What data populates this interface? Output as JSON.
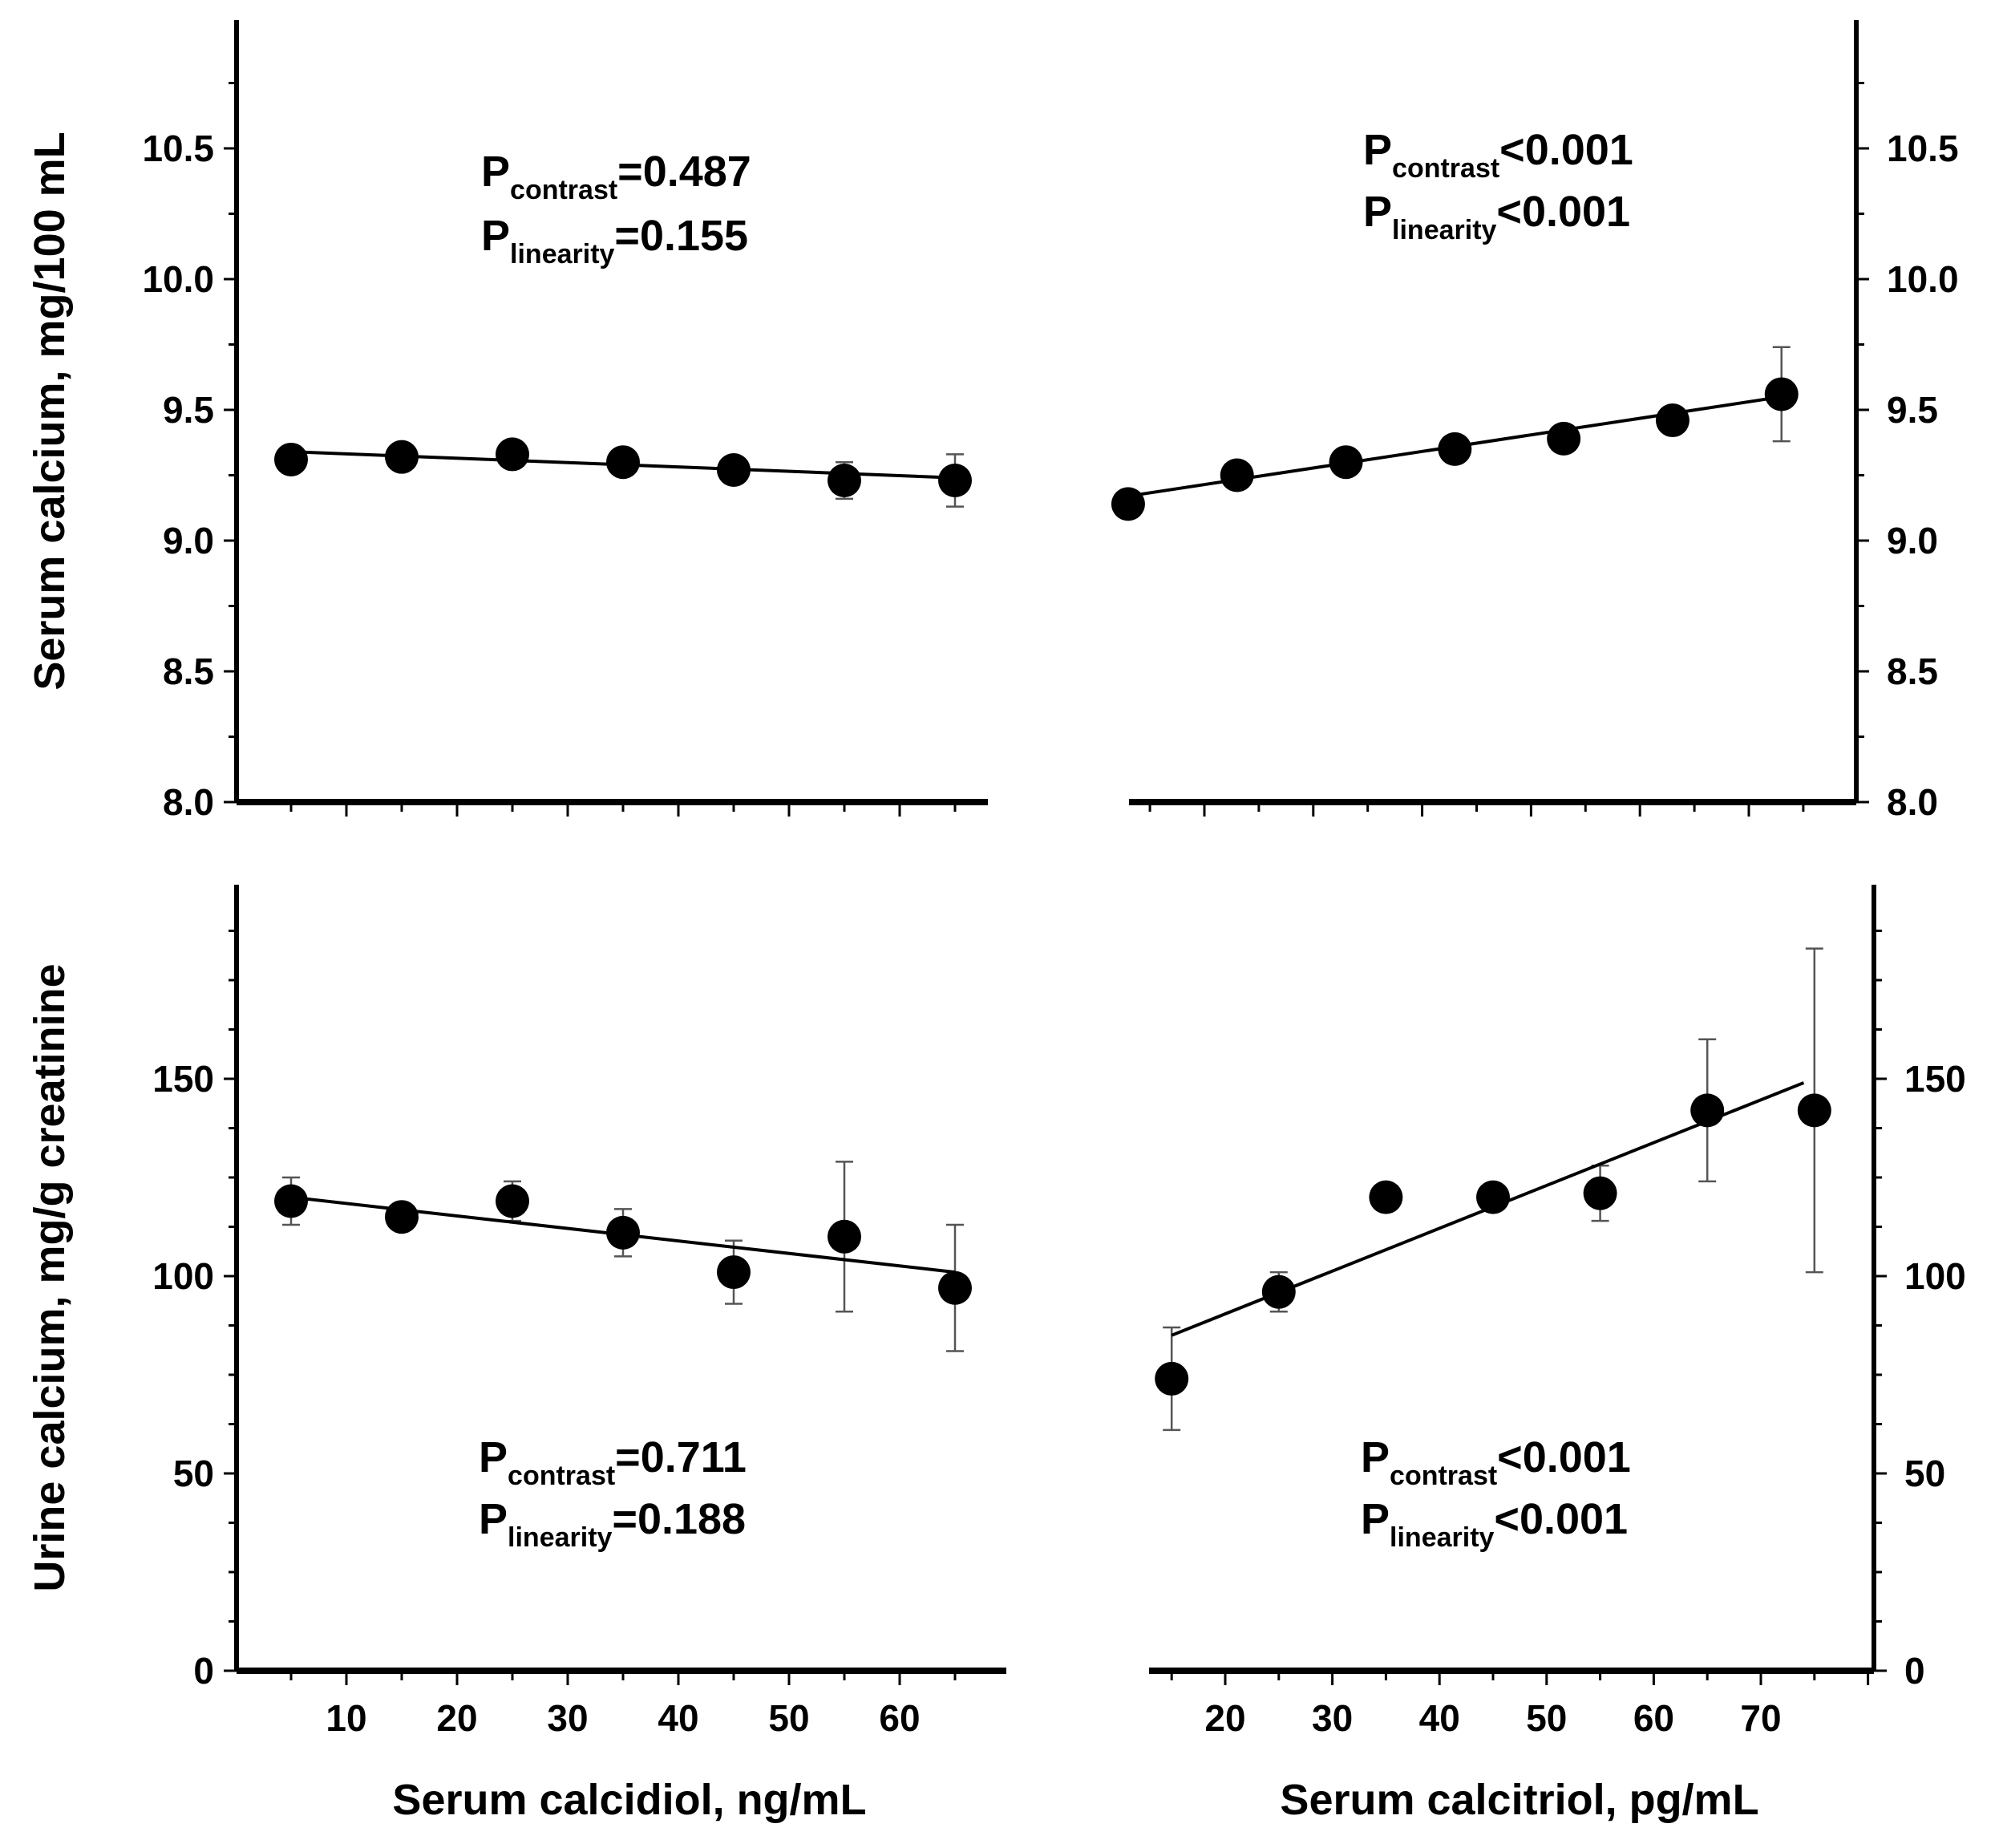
{
  "chart_data": [
    {
      "id": "top-left",
      "type": "scatter",
      "xlabel": "",
      "ylabel": "Serum calcium, mg/100 mL",
      "ylim": [
        8.0,
        11.0
      ],
      "xlim": [
        0,
        70
      ],
      "y_ticks": [
        "8.0",
        "8.5",
        "9.0",
        "9.5",
        "10.0",
        "10.5"
      ],
      "x_ticks": [],
      "points": [
        {
          "x": 5,
          "y": 9.31,
          "err": 0.02
        },
        {
          "x": 15,
          "y": 9.32,
          "err": 0.02
        },
        {
          "x": 25,
          "y": 9.33,
          "err": 0.02
        },
        {
          "x": 35,
          "y": 9.3,
          "err": 0.02
        },
        {
          "x": 45,
          "y": 9.27,
          "err": 0.03
        },
        {
          "x": 55,
          "y": 9.23,
          "err": 0.07
        },
        {
          "x": 65,
          "y": 9.23,
          "err": 0.1
        }
      ],
      "fit_line": {
        "x": [
          5,
          65
        ],
        "y": [
          9.34,
          9.24
        ]
      },
      "annotations": [
        {
          "main": "P",
          "sub": "contrast",
          "rest": "=0.487"
        },
        {
          "main": "P",
          "sub": "linearity",
          "rest": "=0.155"
        }
      ]
    },
    {
      "id": "top-right",
      "type": "scatter",
      "xlabel": "",
      "ylabel": "",
      "ylim": [
        8.0,
        11.0
      ],
      "xlim": [
        10,
        78
      ],
      "y_ticks": [
        "8.0",
        "8.5",
        "9.0",
        "9.5",
        "10.0",
        "10.5"
      ],
      "x_ticks": [],
      "points": [
        {
          "x": 13,
          "y": 9.14,
          "err": 0.02
        },
        {
          "x": 23,
          "y": 9.25,
          "err": 0.02
        },
        {
          "x": 33,
          "y": 9.3,
          "err": 0.02
        },
        {
          "x": 43,
          "y": 9.35,
          "err": 0.02
        },
        {
          "x": 53,
          "y": 9.39,
          "err": 0.02
        },
        {
          "x": 63,
          "y": 9.46,
          "err": 0.03
        },
        {
          "x": 73,
          "y": 9.56,
          "err": 0.18
        }
      ],
      "fit_line": {
        "x": [
          13,
          73
        ],
        "y": [
          9.17,
          9.55
        ]
      },
      "annotations": [
        {
          "main": "P",
          "sub": "contrast",
          "rest": "<0.001"
        },
        {
          "main": "P",
          "sub": "linearity",
          "rest": "<0.001"
        }
      ]
    },
    {
      "id": "bottom-left",
      "type": "scatter",
      "xlabel": "Serum calcidiol, ng/mL",
      "ylabel": "Urine calcium, mg/g creatinine",
      "ylim": [
        0,
        200
      ],
      "xlim": [
        0,
        70
      ],
      "y_ticks": [
        "0",
        "50",
        "100",
        "150"
      ],
      "x_ticks": [
        "10",
        "20",
        "30",
        "40",
        "50",
        "60"
      ],
      "points": [
        {
          "x": 5,
          "y": 119,
          "err": 6
        },
        {
          "x": 15,
          "y": 115,
          "err": 3
        },
        {
          "x": 25,
          "y": 119,
          "err": 5
        },
        {
          "x": 35,
          "y": 111,
          "err": 6
        },
        {
          "x": 45,
          "y": 101,
          "err": 8
        },
        {
          "x": 55,
          "y": 110,
          "err": 19
        },
        {
          "x": 65,
          "y": 97,
          "err": 16
        }
      ],
      "fit_line": {
        "x": [
          5,
          65
        ],
        "y": [
          120,
          101
        ]
      },
      "annotations": [
        {
          "main": "P",
          "sub": "contrast",
          "rest": "=0.711"
        },
        {
          "main": "P",
          "sub": "linearity",
          "rest": "=0.188"
        }
      ]
    },
    {
      "id": "bottom-right",
      "type": "scatter",
      "xlabel": "Serum calcitriol, pg/mL",
      "ylabel": "",
      "ylim": [
        0,
        200
      ],
      "xlim": [
        10,
        80
      ],
      "y_ticks": [
        "0",
        "50",
        "100",
        "150"
      ],
      "x_ticks": [
        "20",
        "30",
        "40",
        "50",
        "60",
        "70"
      ],
      "points": [
        {
          "x": 15,
          "y": 74,
          "err": 13
        },
        {
          "x": 25,
          "y": 96,
          "err": 5
        },
        {
          "x": 35,
          "y": 120,
          "err": 2
        },
        {
          "x": 45,
          "y": 120,
          "err": 2
        },
        {
          "x": 55,
          "y": 121,
          "err": 7
        },
        {
          "x": 65,
          "y": 142,
          "err": 18
        },
        {
          "x": 75,
          "y": 142,
          "err": 41
        }
      ],
      "fit_line": {
        "x": [
          15,
          74
        ],
        "y": [
          85,
          149
        ]
      },
      "annotations": [
        {
          "main": "P",
          "sub": "contrast",
          "rest": "<0.001"
        },
        {
          "main": "P",
          "sub": "linearity",
          "rest": "<0.001"
        }
      ]
    }
  ]
}
